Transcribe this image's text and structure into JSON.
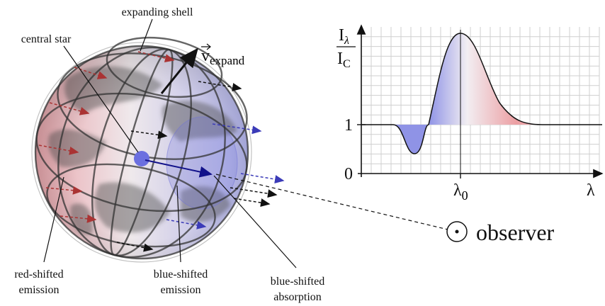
{
  "labels": {
    "expanding_shell": "expanding shell",
    "central_star": "central star",
    "velocity": {
      "symbol": "v",
      "subscript": "expand"
    },
    "red_emission": [
      "red-shifted",
      "emission"
    ],
    "blue_emission": [
      "blue-shifted",
      "emission"
    ],
    "blue_absorption": [
      "blue-shifted",
      "absorption"
    ],
    "observer": "observer"
  },
  "plot": {
    "y_label": {
      "numerator": {
        "symbol": "I",
        "subscript": "λ"
      },
      "denominator": {
        "symbol": "I",
        "subscript": "C"
      }
    },
    "y_ticks": [
      "1",
      "0"
    ],
    "x_ticks": [
      {
        "symbol": "λ",
        "subscript": "0"
      }
    ],
    "x_label": "λ"
  }
}
